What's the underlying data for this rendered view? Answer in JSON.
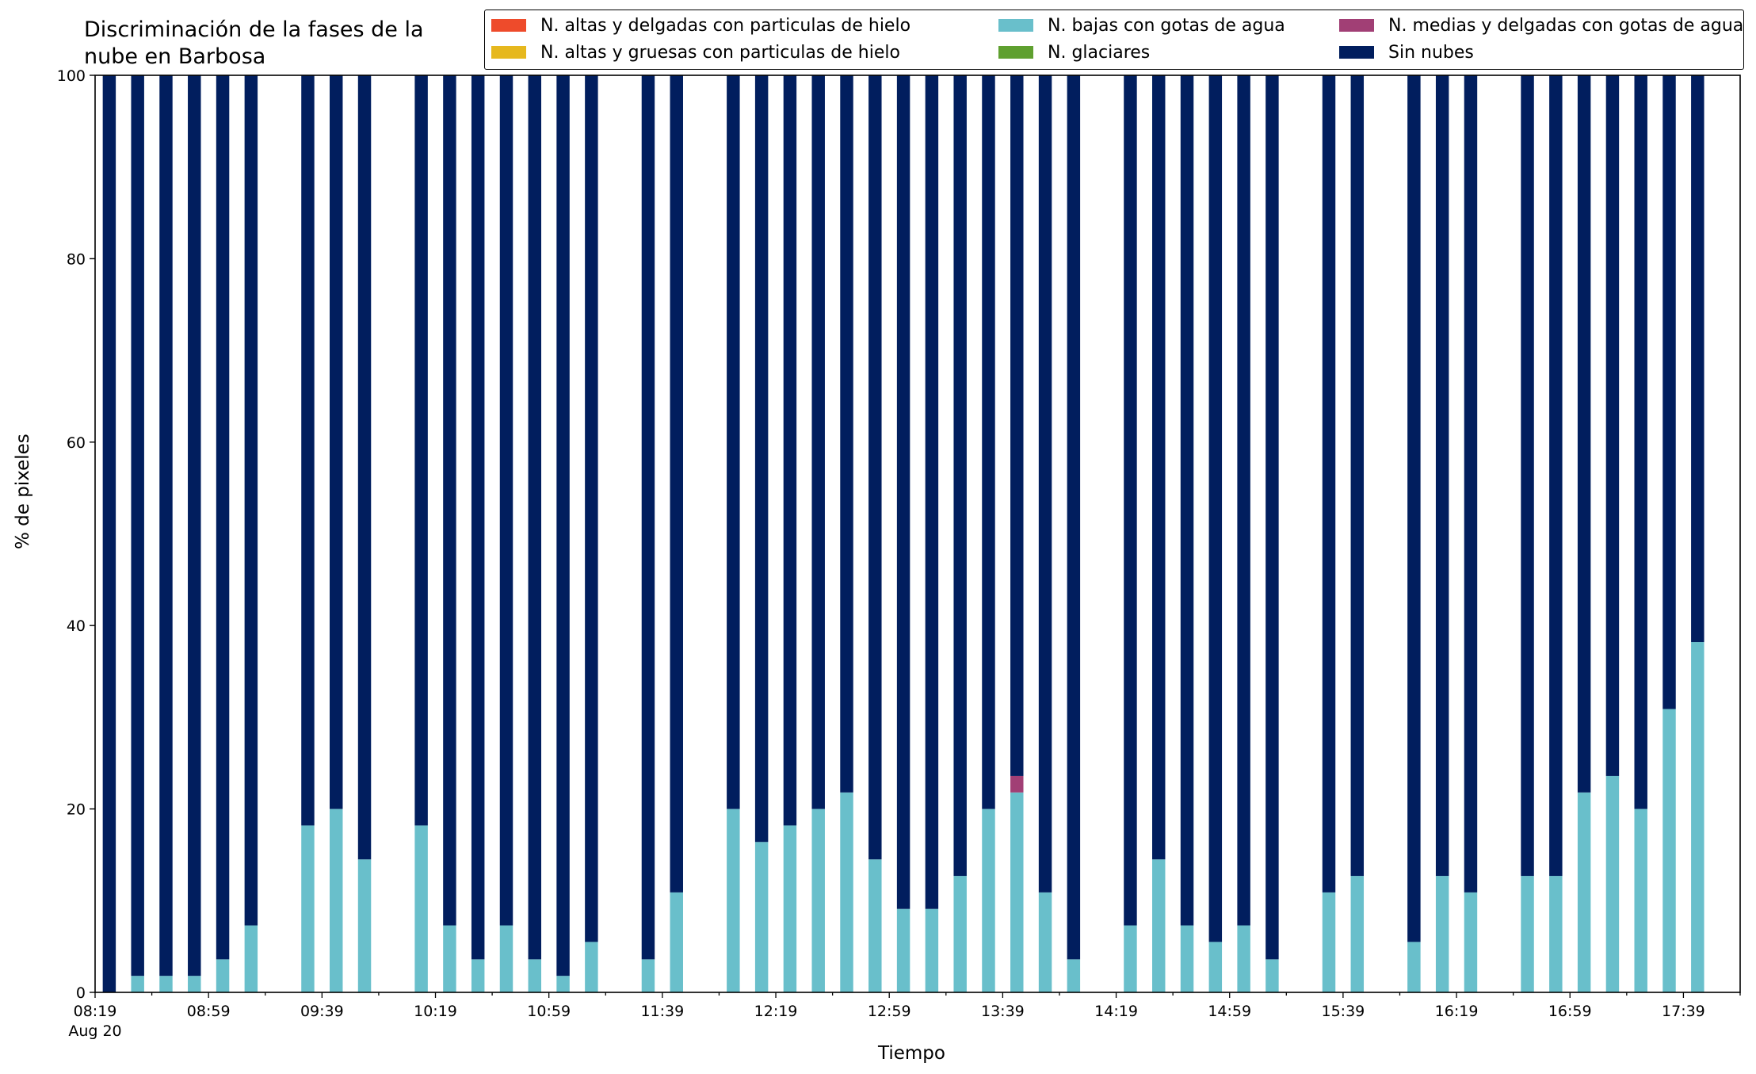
{
  "chart_data": {
    "type": "bar",
    "stacked": true,
    "title": "Discriminación de la fases de la\nnube en Barbosa",
    "title_lines": [
      "Discriminación de la fases de la",
      "nube en Barbosa"
    ],
    "xlabel": "Tiempo",
    "ylabel": "% de pixeles",
    "ylim": [
      0,
      100
    ],
    "y_ticks": [
      "0",
      "20",
      "40",
      "60",
      "80",
      "100"
    ],
    "x_range": [
      "08:19",
      "17:59"
    ],
    "x_ticks": [
      "08:19",
      "08:59",
      "09:39",
      "10:19",
      "10:59",
      "11:39",
      "12:19",
      "12:59",
      "13:39",
      "14:19",
      "14:59",
      "15:39",
      "16:19",
      "16:59",
      "17:39"
    ],
    "x_date_label": "Aug 20",
    "bar_width_minutes": 5,
    "grid": false,
    "legend_position": "top-right",
    "legend": [
      {
        "label": "N. altas y delgadas con particulas de hielo",
        "color": "#EE4B2B"
      },
      {
        "label": "N. altas y gruesas con particulas de hielo",
        "color": "#E6B81E"
      },
      {
        "label": "N. bajas con gotas de agua",
        "color": "#69BFCB"
      },
      {
        "label": "N. glaciares",
        "color": "#5FA02F"
      },
      {
        "label": "N. medias y delgadas con gotas de agua",
        "color": "#A13F75"
      },
      {
        "label": "Sin nubes",
        "color": "#011E5E"
      }
    ],
    "series": [
      {
        "name": "N. bajas con gotas de agua",
        "color": "#69BFCB",
        "values": [
          0,
          1.8,
          1.8,
          1.8,
          3.6,
          7.3,
          18.2,
          20.0,
          14.5,
          18.2,
          7.3,
          3.6,
          7.3,
          3.6,
          1.8,
          5.5,
          3.6,
          10.9,
          20.0,
          16.4,
          18.2,
          20.0,
          21.8,
          14.5,
          9.1,
          9.1,
          12.7,
          20.0,
          21.8,
          10.9,
          3.6,
          7.3,
          14.5,
          7.3,
          5.5,
          7.3,
          3.6,
          10.9,
          12.7,
          5.5,
          12.7,
          10.9,
          12.7,
          12.7,
          21.8,
          23.6,
          20.0,
          30.9,
          38.2
        ]
      },
      {
        "name": "N. medias y delgadas con gotas de agua",
        "color": "#A13F75",
        "values": [
          0,
          0,
          0,
          0,
          0,
          0,
          0,
          0,
          0,
          0,
          0,
          0,
          0,
          0,
          0,
          0,
          0,
          0,
          0,
          0,
          0,
          0,
          0,
          0,
          0,
          0,
          0,
          0,
          1.8,
          0,
          0,
          0,
          0,
          0,
          0,
          0,
          0,
          0,
          0,
          0,
          0,
          0,
          0,
          0,
          0,
          0,
          0,
          0,
          0
        ]
      },
      {
        "name": "Sin nubes",
        "color": "#011E5E",
        "values": [
          100,
          98.2,
          98.2,
          98.2,
          96.4,
          92.7,
          81.8,
          80.0,
          85.5,
          81.8,
          92.7,
          96.4,
          92.7,
          96.4,
          98.2,
          94.5,
          96.4,
          89.1,
          80.0,
          83.6,
          81.8,
          80.0,
          78.2,
          85.5,
          90.9,
          90.9,
          87.3,
          80.0,
          76.4,
          89.1,
          96.4,
          92.7,
          85.5,
          92.7,
          94.5,
          92.7,
          96.4,
          89.1,
          87.3,
          94.5,
          87.3,
          89.1,
          87.3,
          87.3,
          78.2,
          76.4,
          80.0,
          69.1,
          61.8
        ]
      }
    ],
    "x": [
      "08:24",
      "08:34",
      "08:44",
      "08:54",
      "09:04",
      "09:14",
      "09:34",
      "09:44",
      "09:54",
      "10:14",
      "10:24",
      "10:34",
      "10:44",
      "10:54",
      "11:04",
      "11:14",
      "11:34",
      "11:44",
      "12:04",
      "12:14",
      "12:24",
      "12:34",
      "12:44",
      "12:54",
      "13:04",
      "13:14",
      "13:24",
      "13:34",
      "13:44",
      "13:54",
      "14:04",
      "14:24",
      "14:34",
      "14:44",
      "14:54",
      "15:04",
      "15:14",
      "15:34",
      "15:44",
      "16:04",
      "16:14",
      "16:24",
      "16:44",
      "16:54",
      "17:04",
      "17:14",
      "17:24",
      "17:34",
      "17:44"
    ]
  }
}
